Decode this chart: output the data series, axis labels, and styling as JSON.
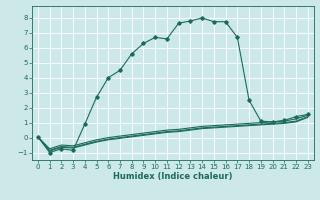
{
  "xlabel": "Humidex (Indice chaleur)",
  "bg_color": "#cce8e8",
  "grid_color": "#ffffff",
  "line_color": "#1a6b5a",
  "xlim": [
    -0.5,
    23.5
  ],
  "ylim": [
    -1.5,
    8.8
  ],
  "xticks": [
    0,
    1,
    2,
    3,
    4,
    5,
    6,
    7,
    8,
    9,
    10,
    11,
    12,
    13,
    14,
    15,
    16,
    17,
    18,
    19,
    20,
    21,
    22,
    23
  ],
  "yticks": [
    -1,
    0,
    1,
    2,
    3,
    4,
    5,
    6,
    7,
    8
  ],
  "main_x": [
    0,
    1,
    2,
    3,
    4,
    5,
    6,
    7,
    8,
    9,
    10,
    11,
    12,
    13,
    14,
    15,
    16,
    17,
    18,
    19,
    20,
    21,
    22,
    23
  ],
  "main_y": [
    0.05,
    -1.0,
    -0.75,
    -0.85,
    0.9,
    2.7,
    4.0,
    4.5,
    5.6,
    6.3,
    6.7,
    6.6,
    7.65,
    7.8,
    8.0,
    7.75,
    7.75,
    6.7,
    2.5,
    1.1,
    1.05,
    1.15,
    1.4,
    1.55
  ],
  "line2_x": [
    0,
    1,
    2,
    3,
    4,
    5,
    6,
    7,
    8,
    9,
    10,
    11,
    12,
    13,
    14,
    15,
    16,
    17,
    18,
    19,
    20,
    21,
    22,
    23
  ],
  "line2_y": [
    0.05,
    -0.75,
    -0.5,
    -0.55,
    -0.35,
    -0.15,
    0.0,
    0.1,
    0.2,
    0.3,
    0.4,
    0.5,
    0.55,
    0.65,
    0.75,
    0.8,
    0.85,
    0.9,
    0.95,
    1.0,
    1.05,
    1.1,
    1.25,
    1.5
  ],
  "line3_x": [
    0,
    1,
    2,
    3,
    4,
    5,
    6,
    7,
    8,
    9,
    10,
    11,
    12,
    13,
    14,
    15,
    16,
    17,
    18,
    19,
    20,
    21,
    22,
    23
  ],
  "line3_y": [
    0.05,
    -0.85,
    -0.6,
    -0.65,
    -0.45,
    -0.25,
    -0.1,
    0.0,
    0.1,
    0.2,
    0.3,
    0.4,
    0.45,
    0.55,
    0.65,
    0.7,
    0.75,
    0.8,
    0.85,
    0.9,
    0.95,
    1.0,
    1.1,
    1.4
  ],
  "line4_x": [
    0,
    1,
    2,
    3,
    4,
    5,
    6,
    7,
    8,
    9,
    10,
    11,
    12,
    13,
    14,
    15,
    16,
    17,
    18,
    19,
    20,
    21,
    22,
    23
  ],
  "line4_y": [
    0.05,
    -0.9,
    -0.65,
    -0.7,
    -0.5,
    -0.3,
    -0.15,
    -0.05,
    0.05,
    0.15,
    0.25,
    0.35,
    0.4,
    0.5,
    0.6,
    0.65,
    0.7,
    0.75,
    0.8,
    0.85,
    0.9,
    0.95,
    1.05,
    1.35
  ],
  "tick_fontsize": 5,
  "xlabel_fontsize": 6,
  "marker": "D",
  "markersize": 1.8,
  "linewidth": 0.8
}
